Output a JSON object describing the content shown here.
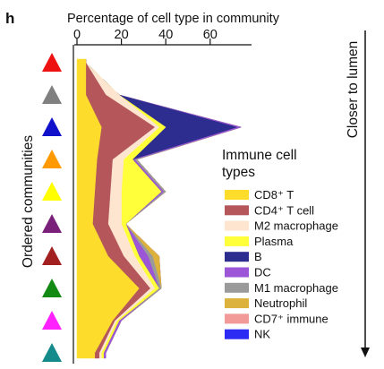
{
  "panel_label": "h",
  "chart_data": {
    "type": "area",
    "orientation": "horizontal-stacked",
    "title": "Percentage of cell type in community",
    "xlabel": "Percentage of cell type in community",
    "ylabel": "Ordered communities",
    "arrow_label": "Closer to lumen",
    "legend_title": [
      "Immune cell",
      "types"
    ],
    "legend_position": "right",
    "xlim": [
      0,
      80
    ],
    "xticks": [
      "0",
      "20",
      "40",
      "60"
    ],
    "xtick_values": [
      0,
      20,
      40,
      60
    ],
    "grid": false,
    "communities": [
      {
        "marker_color": "#ee1111",
        "values": [
          4,
          0,
          0,
          0,
          0,
          0,
          0,
          0,
          0,
          0
        ]
      },
      {
        "marker_color": "#808080",
        "values": [
          4,
          9,
          6,
          0,
          0,
          0,
          0,
          0,
          0,
          0
        ]
      },
      {
        "marker_color": "#1111cc",
        "values": [
          11,
          24,
          2,
          3,
          32,
          2,
          0,
          0,
          0,
          0
        ]
      },
      {
        "marker_color": "#ff9900",
        "values": [
          9,
          7,
          5,
          4,
          0,
          1,
          1,
          0,
          0,
          0
        ]
      },
      {
        "marker_color": "#ffff00",
        "values": [
          8,
          7,
          5,
          18,
          0,
          1,
          1,
          0,
          0,
          0
        ]
      },
      {
        "marker_color": "#7a1f7a",
        "values": [
          7,
          7,
          6,
          2,
          0,
          0,
          0,
          0,
          0,
          0
        ]
      },
      {
        "marker_color": "#a32020",
        "values": [
          14,
          7,
          5,
          2,
          0,
          4,
          2,
          3,
          0,
          0
        ]
      },
      {
        "marker_color": "#138a13",
        "values": [
          28,
          5,
          2,
          2,
          0,
          0,
          1,
          0,
          0,
          0
        ]
      },
      {
        "marker_color": "#ff22ff",
        "values": [
          16,
          1,
          1,
          1,
          0,
          1,
          0,
          0,
          0,
          0
        ]
      },
      {
        "marker_color": "#148a8a",
        "values": [
          8,
          2,
          1,
          1,
          0,
          1,
          0,
          0,
          0,
          0
        ]
      }
    ],
    "series": [
      {
        "name": "CD8⁺ T",
        "color": "#fddc2c"
      },
      {
        "name": "CD4⁺ T cell",
        "color": "#b5565a"
      },
      {
        "name": "M2 macrophage",
        "color": "#fde5d0"
      },
      {
        "name": "Plasma",
        "color": "#ffff3a"
      },
      {
        "name": "B",
        "color": "#2d2c8f"
      },
      {
        "name": "DC",
        "color": "#9b55d6"
      },
      {
        "name": "M1 macrophage",
        "color": "#9a9a9a"
      },
      {
        "name": "Neutrophil",
        "color": "#dcb23c"
      },
      {
        "name": "CD7⁺ immune",
        "color": "#f19a98"
      },
      {
        "name": "NK",
        "color": "#2b2bf3"
      }
    ]
  }
}
